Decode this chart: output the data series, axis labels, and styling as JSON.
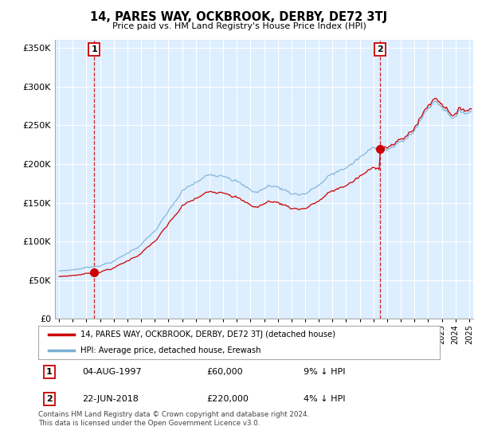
{
  "title": "14, PARES WAY, OCKBROOK, DERBY, DE72 3TJ",
  "subtitle": "Price paid vs. HM Land Registry's House Price Index (HPI)",
  "legend_label_red": "14, PARES WAY, OCKBROOK, DERBY, DE72 3TJ (detached house)",
  "legend_label_blue": "HPI: Average price, detached house, Erewash",
  "annotation1_date": "04-AUG-1997",
  "annotation1_price": "£60,000",
  "annotation1_hpi": "9% ↓ HPI",
  "annotation2_date": "22-JUN-2018",
  "annotation2_price": "£220,000",
  "annotation2_hpi": "4% ↓ HPI",
  "footer": "Contains HM Land Registry data © Crown copyright and database right 2024.\nThis data is licensed under the Open Government Licence v3.0.",
  "ylim": [
    0,
    360000
  ],
  "red_color": "#cc0000",
  "blue_color": "#7ab0d4",
  "plot_bg": "#ddeeff",
  "background_color": "#ffffff",
  "grid_color": "#ffffff",
  "sale1_year": 1997.58,
  "sale1_price": 60000,
  "sale2_year": 2018.47,
  "sale2_price": 220000
}
